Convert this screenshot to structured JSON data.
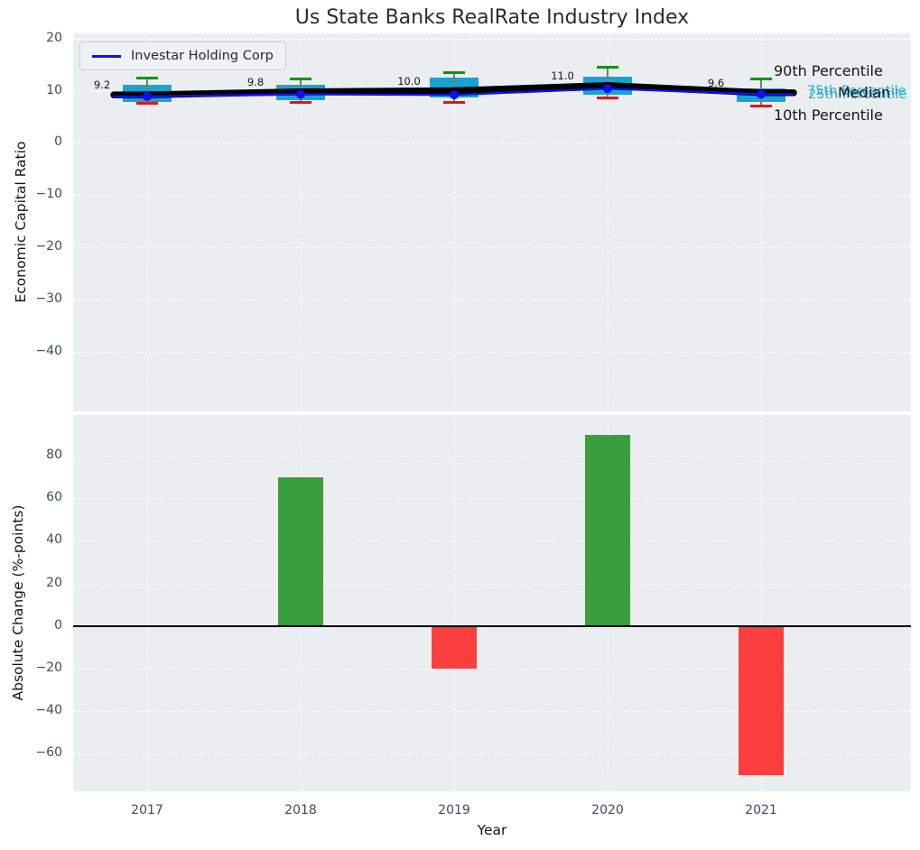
{
  "title": "Us State Banks RealRate Industry Index",
  "legend": {
    "label": "Investar Holding Corp",
    "line_color": "#1010ee"
  },
  "top_chart": {
    "ylabel": "Economic Capital Ratio",
    "annotations": {
      "p90": "90th Percentile",
      "p75": "75th Percentile",
      "median": "Median",
      "p25": "25th Percentile",
      "p10": "10th Percentile"
    }
  },
  "bottom_chart": {
    "ylabel": "Absolute Change (%-points)",
    "xlabel": "Year"
  },
  "chart_data": [
    {
      "type": "boxplot",
      "title": "Us State Banks RealRate Industry Index",
      "ylabel": "Economic Capital Ratio",
      "categories": [
        2017,
        2018,
        2019,
        2020,
        2021
      ],
      "yticks": [
        20,
        10,
        0,
        -10,
        -20,
        -30,
        -40
      ],
      "ylim": [
        -52,
        21
      ],
      "grid": true,
      "legend_position": "upper left",
      "series": [
        {
          "name": "Investar Holding Corp",
          "type": "line",
          "color": "#1010ee",
          "values": [
            8.9,
            9.3,
            9.2,
            10.4,
            9.3
          ]
        },
        {
          "name": "Median",
          "type": "line",
          "color": "#000000",
          "values": [
            9.2,
            9.8,
            10.0,
            11.0,
            9.6
          ]
        }
      ],
      "box_stats": {
        "p90": [
          12.4,
          12.3,
          13.5,
          14.5,
          12.2
        ],
        "p75": [
          11.2,
          11.2,
          12.5,
          12.6,
          10.5
        ],
        "median": [
          9.2,
          9.8,
          10.0,
          11.0,
          9.6
        ],
        "p25": [
          7.9,
          8.2,
          8.7,
          9.3,
          7.8
        ],
        "p10": [
          7.6,
          7.7,
          7.8,
          8.6,
          7.0
        ]
      },
      "median_labels": [
        "9.2",
        "9.8",
        "10.0",
        "11.0",
        "9.6"
      ],
      "colors": {
        "box": "#18a4ce",
        "p90_cap": "#089608",
        "p10_cap": "#e81414",
        "median_line": "#000000",
        "company_line": "#1010ee"
      }
    },
    {
      "type": "bar",
      "xlabel": "Year",
      "ylabel": "Absolute Change (%-points)",
      "categories": [
        2017,
        2018,
        2019,
        2020,
        2021
      ],
      "values": [
        0,
        70,
        -20,
        90,
        -70
      ],
      "yticks": [
        80,
        60,
        40,
        20,
        0,
        -20,
        -40,
        -60
      ],
      "ylim": [
        -78,
        100
      ],
      "grid": true,
      "colors": {
        "positive": "#3a9e3d",
        "negative": "#fb3e3e"
      }
    }
  ]
}
